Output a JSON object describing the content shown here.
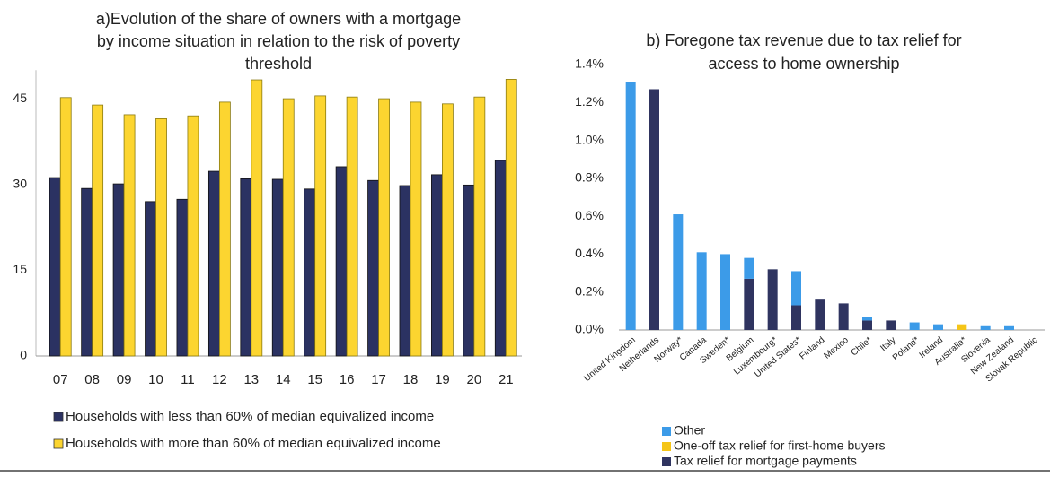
{
  "chart_data": [
    {
      "type": "bar",
      "title": [
        "a)Evolution of the share of owners with a mortgage",
        "by income situation in relation to the risk of poverty",
        "threshold"
      ],
      "categories": [
        "07",
        "08",
        "09",
        "10",
        "11",
        "12",
        "13",
        "14",
        "15",
        "16",
        "17",
        "18",
        "19",
        "20",
        "21"
      ],
      "series": [
        {
          "name": "Households with less than 60% of median equivalized income",
          "color": "#2b3262",
          "values": [
            31.2,
            29.3,
            30.1,
            27.0,
            27.4,
            32.3,
            31.0,
            30.9,
            29.2,
            33.1,
            30.7,
            29.8,
            31.7,
            29.9,
            34.2
          ]
        },
        {
          "name": "Households with more than 60% of median equivalized income",
          "color": "#fcd530",
          "values": [
            45.2,
            43.9,
            42.2,
            41.5,
            42.0,
            44.4,
            48.3,
            45.0,
            45.5,
            45.3,
            45.0,
            44.4,
            44.1,
            45.3,
            48.4
          ]
        }
      ],
      "ylim": [
        0,
        50
      ],
      "yticks": [
        0,
        15,
        30,
        45
      ]
    },
    {
      "type": "stacked-bar",
      "title": [
        "b) Foregone tax revenue due to tax relief for",
        "access to home ownership"
      ],
      "categories": [
        "United Kingdom",
        "Netherlands",
        "Norway*",
        "Canada",
        "Sweden*",
        "Belgium",
        "Luxembourg*",
        "United States*",
        "Finland",
        "Mexico",
        "Chile*",
        "Italy",
        "Poland*",
        "Ireland",
        "Australia*",
        "Slovenia",
        "New Zealand",
        "Slovak Republic"
      ],
      "series": [
        {
          "name": "Tax relief for mortgage payments",
          "color": "#2f3460",
          "values": [
            0,
            1.27,
            0,
            0,
            0,
            0.27,
            0.32,
            0.13,
            0.16,
            0.14,
            0.05,
            0.05,
            0,
            0,
            0,
            0,
            0,
            0
          ]
        },
        {
          "name": "One-off tax relief for first-home buyers",
          "color": "#f5c518",
          "values": [
            0,
            0,
            0,
            0,
            0,
            0,
            0,
            0,
            0,
            0,
            0,
            0,
            0,
            0,
            0.03,
            0,
            0,
            0
          ]
        },
        {
          "name": "Other",
          "color": "#3c9be8",
          "values": [
            1.31,
            0,
            0.61,
            0.41,
            0.4,
            0.11,
            0,
            0.18,
            0,
            0,
            0.02,
            0,
            0.04,
            0.03,
            0,
            0.02,
            0.02,
            0
          ]
        }
      ],
      "ylim": [
        0,
        1.4
      ],
      "yticks": [
        {
          "value": 0,
          "label": "0.0%"
        },
        {
          "value": 0.2,
          "label": "0.2%"
        },
        {
          "value": 0.4,
          "label": "0.4%"
        },
        {
          "value": 0.6,
          "label": "0.6%"
        },
        {
          "value": 0.8,
          "label": "0.8%"
        },
        {
          "value": 1.0,
          "label": "1.0%"
        },
        {
          "value": 1.2,
          "label": "1.2%"
        },
        {
          "value": 1.4,
          "label": "1.4%"
        }
      ]
    }
  ]
}
